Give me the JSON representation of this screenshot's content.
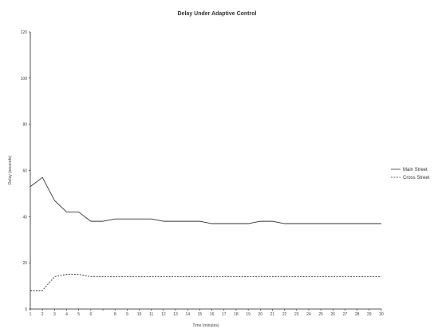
{
  "chart_data": {
    "type": "line",
    "title": "Delay Under Adaptive Control",
    "xlabel": "Time (minutes)",
    "ylabel": "Delay (seconds)",
    "x": [
      1,
      2,
      3,
      4,
      5,
      6,
      7,
      8,
      9,
      10,
      11,
      12,
      13,
      14,
      15,
      16,
      17,
      18,
      19,
      20,
      21,
      22,
      23,
      24,
      25,
      26,
      27,
      28,
      29,
      30
    ],
    "x_tick_labels": [
      "1",
      "2",
      "3",
      "4",
      "5",
      "6",
      "",
      "8",
      "9",
      "10",
      "11",
      "12",
      "13",
      "14",
      "15",
      "16",
      "17",
      "18",
      "19",
      "20",
      "21",
      "22",
      "23",
      "24",
      "25",
      "26",
      "27",
      "28",
      "29",
      "30"
    ],
    "ylim": [
      0,
      120
    ],
    "y_ticks": [
      0,
      20,
      40,
      60,
      80,
      100,
      120
    ],
    "y_tick_labels": [
      "0",
      "20",
      "40",
      "60",
      "80",
      "100",
      "120"
    ],
    "grid": false,
    "legend_position": "right",
    "series": [
      {
        "name": "Main Street",
        "color": "#333333",
        "dash": "solid",
        "values": [
          53,
          57,
          47,
          42,
          42,
          38,
          38,
          39,
          39,
          39,
          39,
          38,
          38,
          38,
          38,
          37,
          37,
          37,
          37,
          38,
          38,
          37,
          37,
          37,
          37,
          37,
          37,
          37,
          37,
          37
        ]
      },
      {
        "name": "Cross Street",
        "color": "#333333",
        "dash": "dashed",
        "values": [
          8,
          8,
          14,
          15,
          15,
          14,
          14,
          14,
          14,
          14,
          14,
          14,
          14,
          14,
          14,
          14,
          14,
          14,
          14,
          14,
          14,
          14,
          14,
          14,
          14,
          14,
          14,
          14,
          14,
          14
        ]
      }
    ]
  }
}
